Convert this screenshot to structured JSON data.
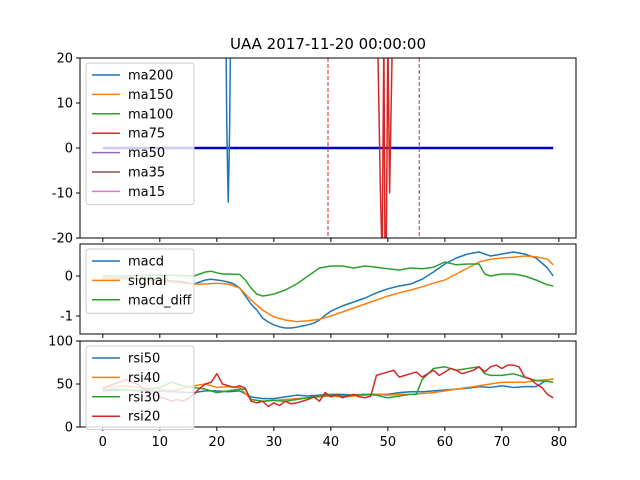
{
  "chart_data": [
    {
      "type": "line",
      "title": "UAA 2017-11-20 00:00:00",
      "xlabel": "",
      "ylabel": "",
      "xlim": [
        -4,
        83
      ],
      "ylim": [
        -20,
        20
      ],
      "xticks": [
        0,
        10,
        20,
        30,
        40,
        50,
        60,
        70,
        80
      ],
      "show_xtick_labels": false,
      "yticks": [
        -20,
        -10,
        0,
        10,
        20
      ],
      "grid": false,
      "legend": "upper left",
      "vlines": [
        {
          "x": 39.5,
          "color": "#d62728",
          "style": "dashed"
        },
        {
          "x": 55.5,
          "color": "#d62728",
          "style": "dashed"
        }
      ],
      "extra_lines": [
        {
          "x": [
            0,
            79
          ],
          "y": [
            0,
            0
          ],
          "color": "#0000cc",
          "width": 2.5
        }
      ],
      "series": [
        {
          "name": "ma200",
          "color": "#1f77b4",
          "x": [
            21.6,
            21.75,
            21.9,
            22.0,
            22.1,
            22.25,
            22.4
          ],
          "y": [
            25,
            5,
            -6,
            -12,
            -6,
            5,
            25
          ]
        },
        {
          "name": "ma150",
          "color": "#ff7f0e",
          "x": [],
          "y": []
        },
        {
          "name": "ma100",
          "color": "#2ca02c",
          "x": [],
          "y": []
        },
        {
          "name": "ma75",
          "color": "#d62728",
          "x": [
            48.2,
            48.7,
            49.0,
            49.3,
            49.5,
            49.7,
            50.0,
            50.3,
            50.8
          ],
          "y": [
            25,
            -10,
            -25,
            25,
            -25,
            -25,
            25,
            -10,
            25
          ]
        },
        {
          "name": "ma50",
          "color": "#9467bd",
          "x": [],
          "y": []
        },
        {
          "name": "ma35",
          "color": "#8c564b",
          "x": [],
          "y": []
        },
        {
          "name": "ma15",
          "color": "#e377c2",
          "x": [],
          "y": []
        }
      ]
    },
    {
      "type": "line",
      "xlabel": "",
      "ylabel": "",
      "xlim": [
        -4,
        83
      ],
      "ylim": [
        -1.45,
        0.8
      ],
      "xticks": [
        0,
        10,
        20,
        30,
        40,
        50,
        60,
        70,
        80
      ],
      "show_xtick_labels": false,
      "yticks": [
        -1,
        0
      ],
      "grid": false,
      "legend": "upper left",
      "series": [
        {
          "name": "macd",
          "color": "#1f77b4",
          "x": [
            0,
            2,
            4,
            6,
            8,
            10,
            12,
            14,
            16,
            18,
            19,
            20,
            21,
            22,
            23,
            24,
            25,
            26,
            27,
            28,
            29,
            30,
            31,
            32,
            33,
            34,
            35,
            36,
            37,
            38,
            39,
            40,
            42,
            44,
            46,
            48,
            50,
            52,
            54,
            56,
            58,
            60,
            62,
            64,
            66,
            68,
            70,
            72,
            74,
            76,
            78,
            79
          ],
          "y": [
            -0.05,
            -0.06,
            -0.05,
            -0.07,
            -0.08,
            -0.1,
            -0.12,
            -0.14,
            -0.2,
            -0.1,
            -0.08,
            -0.1,
            -0.12,
            -0.15,
            -0.2,
            -0.3,
            -0.5,
            -0.7,
            -0.85,
            -1.05,
            -1.15,
            -1.22,
            -1.27,
            -1.3,
            -1.3,
            -1.28,
            -1.25,
            -1.22,
            -1.18,
            -1.1,
            -0.98,
            -0.88,
            -0.75,
            -0.65,
            -0.55,
            -0.42,
            -0.32,
            -0.25,
            -0.2,
            -0.08,
            0.1,
            0.3,
            0.45,
            0.55,
            0.6,
            0.5,
            0.55,
            0.6,
            0.55,
            0.45,
            0.2,
            0.0
          ]
        },
        {
          "name": "signal",
          "color": "#ff7f0e",
          "x": [
            0,
            2,
            4,
            6,
            8,
            10,
            12,
            14,
            16,
            18,
            20,
            22,
            24,
            26,
            28,
            30,
            32,
            34,
            36,
            38,
            40,
            42,
            44,
            46,
            48,
            50,
            52,
            54,
            56,
            58,
            60,
            62,
            64,
            66,
            68,
            70,
            72,
            74,
            76,
            78,
            79
          ],
          "y": [
            -0.05,
            -0.06,
            -0.07,
            -0.08,
            -0.1,
            -0.12,
            -0.15,
            -0.18,
            -0.2,
            -0.2,
            -0.18,
            -0.2,
            -0.3,
            -0.6,
            -0.85,
            -1.02,
            -1.1,
            -1.14,
            -1.12,
            -1.08,
            -1.0,
            -0.9,
            -0.8,
            -0.7,
            -0.6,
            -0.5,
            -0.42,
            -0.35,
            -0.27,
            -0.18,
            -0.1,
            0.05,
            0.2,
            0.35,
            0.42,
            0.45,
            0.47,
            0.5,
            0.48,
            0.42,
            0.28
          ]
        },
        {
          "name": "macd_diff",
          "color": "#2ca02c",
          "x": [
            0,
            4,
            8,
            12,
            16,
            18,
            19,
            20,
            21,
            22,
            23,
            24,
            25,
            26,
            27,
            28,
            29,
            30,
            32,
            34,
            36,
            38,
            40,
            42,
            44,
            46,
            48,
            50,
            52,
            54,
            56,
            58,
            60,
            62,
            64,
            66,
            67,
            68,
            70,
            72,
            74,
            76,
            78,
            79
          ],
          "y": [
            0.0,
            0.0,
            0.02,
            0.02,
            0.0,
            0.1,
            0.12,
            0.08,
            0.05,
            0.05,
            0.04,
            0.04,
            -0.1,
            -0.3,
            -0.45,
            -0.5,
            -0.48,
            -0.45,
            -0.35,
            -0.2,
            0.0,
            0.2,
            0.25,
            0.25,
            0.2,
            0.25,
            0.22,
            0.18,
            0.15,
            0.2,
            0.18,
            0.22,
            0.35,
            0.28,
            0.3,
            0.3,
            0.05,
            0.0,
            0.05,
            0.05,
            0.0,
            -0.1,
            -0.22,
            -0.25
          ]
        }
      ]
    },
    {
      "type": "line",
      "xlabel": "",
      "ylabel": "",
      "xlim": [
        -4,
        83
      ],
      "ylim": [
        0,
        100
      ],
      "xticks": [
        0,
        10,
        20,
        30,
        40,
        50,
        60,
        70,
        80
      ],
      "show_xtick_labels": true,
      "yticks": [
        0,
        50,
        100
      ],
      "grid": false,
      "legend": "upper left",
      "series": [
        {
          "name": "rsi50",
          "color": "#1f77b4",
          "x": [
            0,
            4,
            8,
            12,
            16,
            18,
            20,
            22,
            24,
            26,
            28,
            30,
            32,
            34,
            36,
            38,
            40,
            42,
            44,
            46,
            48,
            50,
            52,
            54,
            56,
            58,
            60,
            62,
            64,
            66,
            68,
            70,
            72,
            74,
            76,
            78,
            79
          ],
          "y": [
            42,
            43,
            42,
            41,
            40,
            42,
            42,
            41,
            42,
            35,
            33,
            33,
            35,
            37,
            36,
            37,
            38,
            38,
            37,
            38,
            38,
            38,
            40,
            41,
            41,
            42,
            43,
            44,
            45,
            47,
            46,
            48,
            46,
            47,
            47,
            55,
            56
          ]
        },
        {
          "name": "rsi40",
          "color": "#ff7f0e",
          "x": [
            0,
            2,
            4,
            6,
            8,
            10,
            12,
            14,
            16,
            18,
            20,
            22,
            24,
            26,
            28,
            30,
            32,
            34,
            36,
            38,
            40,
            42,
            44,
            46,
            48,
            50,
            52,
            54,
            56,
            58,
            60,
            62,
            64,
            66,
            68,
            70,
            72,
            74,
            76,
            78,
            79
          ],
          "y": [
            45,
            47,
            48,
            46,
            45,
            44,
            42,
            45,
            48,
            50,
            46,
            47,
            46,
            32,
            30,
            31,
            32,
            33,
            34,
            35,
            36,
            35,
            36,
            37,
            38,
            37,
            38,
            38,
            39,
            40,
            42,
            44,
            46,
            48,
            50,
            52,
            52,
            52,
            54,
            55,
            56
          ]
        },
        {
          "name": "rsi30",
          "color": "#2ca02c",
          "x": [
            0,
            2,
            4,
            6,
            8,
            10,
            12,
            14,
            16,
            18,
            20,
            22,
            24,
            25,
            26,
            28,
            30,
            32,
            34,
            36,
            38,
            40,
            42,
            44,
            46,
            48,
            50,
            52,
            54,
            55,
            56,
            58,
            60,
            62,
            64,
            66,
            67,
            68,
            70,
            72,
            74,
            76,
            78,
            79
          ],
          "y": [
            43,
            44,
            43,
            42,
            44,
            46,
            52,
            48,
            46,
            44,
            40,
            42,
            44,
            44,
            32,
            30,
            31,
            30,
            32,
            34,
            36,
            37,
            36,
            37,
            38,
            37,
            34,
            36,
            38,
            38,
            55,
            68,
            70,
            66,
            68,
            70,
            62,
            60,
            60,
            62,
            58,
            54,
            53,
            52
          ]
        },
        {
          "name": "rsi20",
          "color": "#d62728",
          "x": [
            0,
            1,
            2,
            3,
            4,
            5,
            6,
            7,
            8,
            9,
            10,
            11,
            12,
            13,
            14,
            15,
            16,
            17,
            18,
            19,
            20,
            21,
            22,
            23,
            24,
            25,
            26,
            27,
            28,
            29,
            30,
            31,
            32,
            33,
            34,
            35,
            36,
            37,
            38,
            39,
            40,
            41,
            42,
            43,
            44,
            45,
            46,
            47,
            48,
            49,
            50,
            51,
            52,
            53,
            54,
            55,
            56,
            57,
            58,
            59,
            60,
            61,
            62,
            63,
            64,
            65,
            66,
            67,
            68,
            69,
            70,
            71,
            72,
            73,
            74,
            75,
            76,
            77,
            78,
            79
          ],
          "y": [
            45,
            48,
            50,
            52,
            55,
            53,
            50,
            45,
            40,
            38,
            35,
            33,
            30,
            32,
            30,
            33,
            38,
            45,
            50,
            52,
            62,
            50,
            48,
            46,
            48,
            45,
            30,
            28,
            30,
            24,
            28,
            25,
            30,
            27,
            28,
            30,
            32,
            35,
            30,
            40,
            35,
            38,
            34,
            36,
            38,
            35,
            34,
            36,
            60,
            62,
            64,
            66,
            58,
            60,
            62,
            64,
            58,
            62,
            66,
            60,
            64,
            68,
            66,
            62,
            64,
            66,
            70,
            64,
            70,
            72,
            68,
            72,
            72,
            70,
            58,
            56,
            50,
            46,
            38,
            34
          ]
        }
      ]
    }
  ]
}
